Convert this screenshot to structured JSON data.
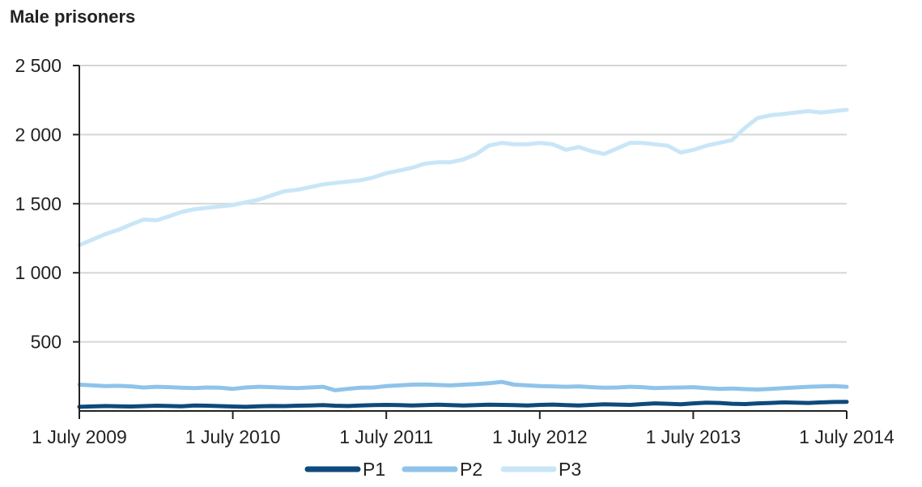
{
  "chart_data": {
    "type": "line",
    "title": "Male prisoners",
    "xlabel": "",
    "ylabel": "",
    "ylim": [
      0,
      2500
    ],
    "yticks": [
      500,
      1000,
      1500,
      2000,
      2500
    ],
    "ytick_labels": [
      "500",
      "1 000",
      "1 500",
      "2 000",
      "2 500"
    ],
    "xlim": [
      "2009-07-01",
      "2014-07-01"
    ],
    "xtick_labels": [
      "1 July 2009",
      "1 July 2010",
      "1 July 2011",
      "1 July 2012",
      "1 July 2013",
      "1 July 2014"
    ],
    "grid": true,
    "legend_position": "bottom",
    "x": [
      "2009-07-01",
      "2009-08-01",
      "2009-09-01",
      "2009-10-01",
      "2009-11-01",
      "2009-12-01",
      "2010-01-01",
      "2010-02-01",
      "2010-03-01",
      "2010-04-01",
      "2010-05-01",
      "2010-06-01",
      "2010-07-01",
      "2010-08-01",
      "2010-09-01",
      "2010-10-01",
      "2010-11-01",
      "2010-12-01",
      "2011-01-01",
      "2011-02-01",
      "2011-03-01",
      "2011-04-01",
      "2011-05-01",
      "2011-06-01",
      "2011-07-01",
      "2011-08-01",
      "2011-09-01",
      "2011-10-01",
      "2011-11-01",
      "2011-12-01",
      "2012-01-01",
      "2012-02-01",
      "2012-03-01",
      "2012-04-01",
      "2012-05-01",
      "2012-06-01",
      "2012-07-01",
      "2012-08-01",
      "2012-09-01",
      "2012-10-01",
      "2012-11-01",
      "2012-12-01",
      "2013-01-01",
      "2013-02-01",
      "2013-03-01",
      "2013-04-01",
      "2013-05-01",
      "2013-06-01",
      "2013-07-01",
      "2013-08-01",
      "2013-09-01",
      "2013-10-01",
      "2013-11-01",
      "2013-12-01",
      "2014-01-01",
      "2014-02-01",
      "2014-03-01",
      "2014-04-01",
      "2014-05-01",
      "2014-06-01",
      "2014-07-01"
    ],
    "series": [
      {
        "name": "P1",
        "color": "#0e4a7c",
        "values": [
          30,
          33,
          36,
          34,
          32,
          35,
          38,
          36,
          34,
          40,
          38,
          35,
          32,
          30,
          34,
          36,
          35,
          38,
          40,
          42,
          38,
          36,
          40,
          42,
          44,
          42,
          40,
          43,
          45,
          42,
          40,
          43,
          45,
          44,
          42,
          40,
          44,
          46,
          42,
          40,
          44,
          48,
          46,
          44,
          50,
          55,
          52,
          48,
          55,
          60,
          58,
          52,
          50,
          55,
          58,
          62,
          60,
          58,
          62,
          65,
          66
        ]
      },
      {
        "name": "P2",
        "color": "#8fc3ea",
        "values": [
          190,
          185,
          180,
          182,
          178,
          170,
          175,
          172,
          168,
          165,
          170,
          168,
          160,
          170,
          175,
          172,
          168,
          165,
          170,
          175,
          150,
          160,
          168,
          170,
          180,
          185,
          190,
          192,
          188,
          185,
          190,
          195,
          200,
          210,
          190,
          185,
          180,
          178,
          175,
          178,
          172,
          168,
          170,
          175,
          172,
          165,
          168,
          170,
          172,
          165,
          160,
          162,
          158,
          155,
          160,
          165,
          170,
          175,
          178,
          180,
          175
        ]
      },
      {
        "name": "P3",
        "color": "#c9e6f7",
        "values": [
          1200,
          1240,
          1280,
          1310,
          1350,
          1385,
          1380,
          1410,
          1440,
          1460,
          1470,
          1480,
          1490,
          1510,
          1530,
          1560,
          1590,
          1600,
          1620,
          1640,
          1650,
          1660,
          1670,
          1690,
          1720,
          1740,
          1760,
          1790,
          1800,
          1800,
          1820,
          1860,
          1920,
          1940,
          1930,
          1930,
          1940,
          1930,
          1890,
          1910,
          1880,
          1860,
          1900,
          1940,
          1940,
          1930,
          1920,
          1870,
          1890,
          1920,
          1940,
          1960,
          2050,
          2120,
          2140,
          2150,
          2160,
          2170,
          2160,
          2170,
          2180
        ]
      }
    ]
  }
}
